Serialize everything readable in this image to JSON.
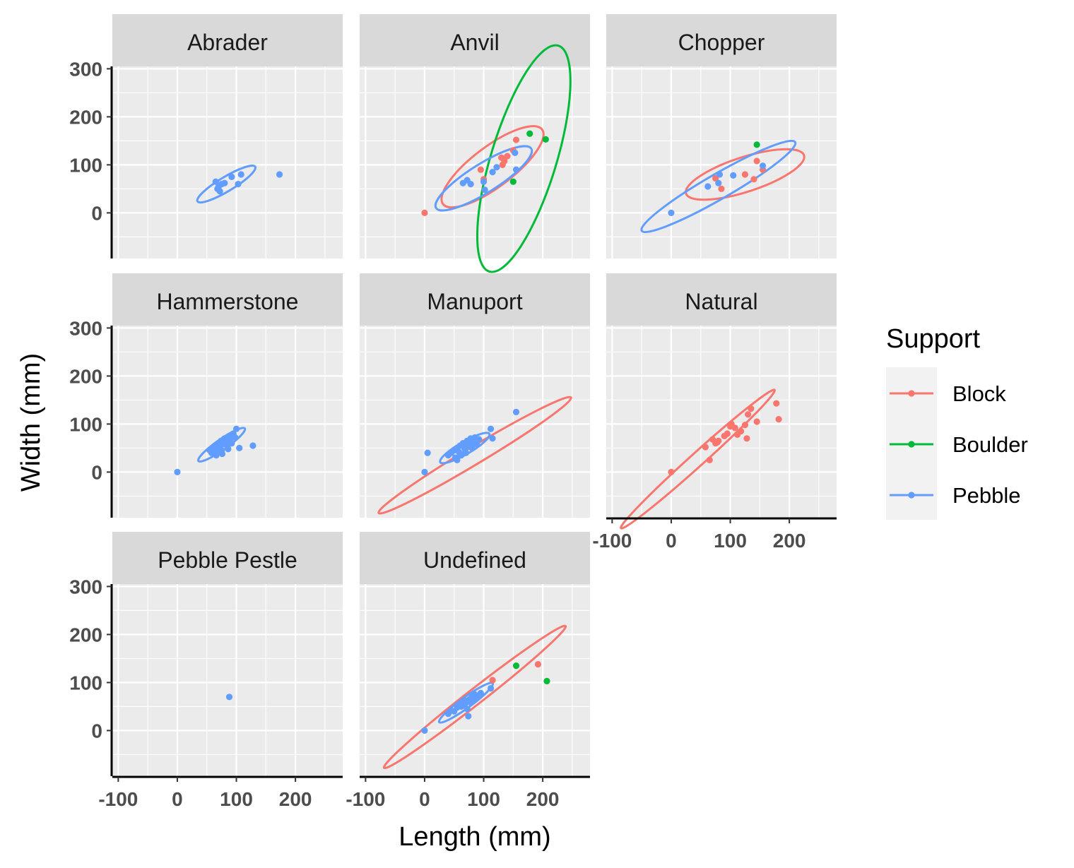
{
  "chart_data": {
    "type": "scatter",
    "xlabel": "Length (mm)",
    "ylabel": "Width (mm)",
    "xlim": [
      -110,
      280
    ],
    "ylim": [
      -95,
      305
    ],
    "x_ticks": [
      -100,
      0,
      100,
      200
    ],
    "y_ticks": [
      0,
      100,
      200,
      300
    ],
    "grid": true,
    "legend": {
      "title": "Support",
      "position": "right",
      "entries": [
        {
          "name": "Block",
          "color": "#F8766D"
        },
        {
          "name": "Boulder",
          "color": "#00BA38"
        },
        {
          "name": "Pebble",
          "color": "#619CFF"
        }
      ]
    },
    "facets": [
      {
        "label": "Abrader",
        "points": [
          {
            "support": "Pebble",
            "x": 65,
            "y": 65
          },
          {
            "support": "Pebble",
            "x": 70,
            "y": 55
          },
          {
            "support": "Pebble",
            "x": 75,
            "y": 60
          },
          {
            "support": "Pebble",
            "x": 68,
            "y": 50
          },
          {
            "support": "Pebble",
            "x": 72,
            "y": 45
          },
          {
            "support": "Pebble",
            "x": 80,
            "y": 62
          },
          {
            "support": "Pebble",
            "x": 92,
            "y": 75
          },
          {
            "support": "Pebble",
            "x": 103,
            "y": 60
          },
          {
            "support": "Pebble",
            "x": 108,
            "y": 80
          },
          {
            "support": "Pebble",
            "x": 173,
            "y": 80
          }
        ],
        "ellipses": [
          {
            "support": "Pebble",
            "cx": 83,
            "cy": 60,
            "rx": 57,
            "ry": 15,
            "angle": 31
          }
        ]
      },
      {
        "label": "Anvil",
        "points": [
          {
            "support": "Block",
            "x": 0,
            "y": 0
          },
          {
            "support": "Block",
            "x": 95,
            "y": 90
          },
          {
            "support": "Block",
            "x": 100,
            "y": 70
          },
          {
            "support": "Block",
            "x": 130,
            "y": 115
          },
          {
            "support": "Block",
            "x": 132,
            "y": 100
          },
          {
            "support": "Block",
            "x": 140,
            "y": 118
          },
          {
            "support": "Block",
            "x": 135,
            "y": 108
          },
          {
            "support": "Block",
            "x": 155,
            "y": 152
          },
          {
            "support": "Block",
            "x": 150,
            "y": 130
          },
          {
            "support": "Boulder",
            "x": 178,
            "y": 165
          },
          {
            "support": "Boulder",
            "x": 205,
            "y": 153
          },
          {
            "support": "Boulder",
            "x": 150,
            "y": 65
          },
          {
            "support": "Pebble",
            "x": 65,
            "y": 62
          },
          {
            "support": "Pebble",
            "x": 72,
            "y": 68
          },
          {
            "support": "Pebble",
            "x": 78,
            "y": 60
          },
          {
            "support": "Pebble",
            "x": 100,
            "y": 65
          },
          {
            "support": "Pebble",
            "x": 102,
            "y": 48
          },
          {
            "support": "Pebble",
            "x": 115,
            "y": 85
          },
          {
            "support": "Pebble",
            "x": 122,
            "y": 95
          },
          {
            "support": "Pebble",
            "x": 153,
            "y": 125
          },
          {
            "support": "Pebble",
            "x": 155,
            "y": 90
          }
        ],
        "ellipses": [
          {
            "support": "Block",
            "cx": 115,
            "cy": 96,
            "rx": 105,
            "ry": 42,
            "angle": 37
          },
          {
            "support": "Boulder",
            "cx": 168,
            "cy": 113,
            "rx": 200,
            "ry": 68,
            "angle": 73
          },
          {
            "support": "Pebble",
            "cx": 100,
            "cy": 72,
            "rx": 95,
            "ry": 30,
            "angle": 32
          }
        ]
      },
      {
        "label": "Chopper",
        "points": [
          {
            "support": "Block",
            "x": 75,
            "y": 72
          },
          {
            "support": "Block",
            "x": 85,
            "y": 50
          },
          {
            "support": "Block",
            "x": 125,
            "y": 80
          },
          {
            "support": "Block",
            "x": 140,
            "y": 70
          },
          {
            "support": "Block",
            "x": 145,
            "y": 108
          },
          {
            "support": "Block",
            "x": 155,
            "y": 90
          },
          {
            "support": "Boulder",
            "x": 145,
            "y": 142
          },
          {
            "support": "Pebble",
            "x": 0,
            "y": 0
          },
          {
            "support": "Pebble",
            "x": 62,
            "y": 55
          },
          {
            "support": "Pebble",
            "x": 80,
            "y": 62
          },
          {
            "support": "Pebble",
            "x": 82,
            "y": 80
          },
          {
            "support": "Pebble",
            "x": 105,
            "y": 78
          },
          {
            "support": "Pebble",
            "x": 155,
            "y": 98
          }
        ],
        "ellipses": [
          {
            "support": "Block",
            "cx": 125,
            "cy": 80,
            "rx": 105,
            "ry": 36,
            "angle": 18
          },
          {
            "support": "Pebble",
            "cx": 80,
            "cy": 55,
            "rx": 150,
            "ry": 26,
            "angle": 30
          }
        ]
      },
      {
        "label": "Hammerstone",
        "points": [
          {
            "support": "Pebble",
            "x": 0,
            "y": 0
          },
          {
            "support": "Pebble",
            "x": 55,
            "y": 45
          },
          {
            "support": "Pebble",
            "x": 60,
            "y": 50
          },
          {
            "support": "Pebble",
            "x": 62,
            "y": 42
          },
          {
            "support": "Pebble",
            "x": 65,
            "y": 55
          },
          {
            "support": "Pebble",
            "x": 68,
            "y": 48
          },
          {
            "support": "Pebble",
            "x": 70,
            "y": 60
          },
          {
            "support": "Pebble",
            "x": 72,
            "y": 52
          },
          {
            "support": "Pebble",
            "x": 74,
            "y": 65
          },
          {
            "support": "Pebble",
            "x": 75,
            "y": 45
          },
          {
            "support": "Pebble",
            "x": 76,
            "y": 38
          },
          {
            "support": "Pebble",
            "x": 78,
            "y": 58
          },
          {
            "support": "Pebble",
            "x": 80,
            "y": 70
          },
          {
            "support": "Pebble",
            "x": 82,
            "y": 62
          },
          {
            "support": "Pebble",
            "x": 85,
            "y": 55
          },
          {
            "support": "Pebble",
            "x": 88,
            "y": 75
          },
          {
            "support": "Pebble",
            "x": 90,
            "y": 68
          },
          {
            "support": "Pebble",
            "x": 92,
            "y": 60
          },
          {
            "support": "Pebble",
            "x": 95,
            "y": 80
          },
          {
            "support": "Pebble",
            "x": 98,
            "y": 72
          },
          {
            "support": "Pebble",
            "x": 100,
            "y": 90
          },
          {
            "support": "Pebble",
            "x": 58,
            "y": 40
          },
          {
            "support": "Pebble",
            "x": 66,
            "y": 35
          },
          {
            "support": "Pebble",
            "x": 70,
            "y": 42
          },
          {
            "support": "Pebble",
            "x": 86,
            "y": 48
          },
          {
            "support": "Pebble",
            "x": 105,
            "y": 50
          },
          {
            "support": "Pebble",
            "x": 128,
            "y": 55
          }
        ],
        "ellipses": [
          {
            "support": "Pebble",
            "cx": 75,
            "cy": 57,
            "rx": 48,
            "ry": 11,
            "angle": 35
          }
        ]
      },
      {
        "label": "Manuport",
        "points": [
          {
            "support": "Block",
            "x": 70,
            "y": 60
          },
          {
            "support": "Block",
            "x": 85,
            "y": 62
          },
          {
            "support": "Pebble",
            "x": 0,
            "y": 0
          },
          {
            "support": "Pebble",
            "x": 5,
            "y": 40
          },
          {
            "support": "Pebble",
            "x": 40,
            "y": 35
          },
          {
            "support": "Pebble",
            "x": 45,
            "y": 40
          },
          {
            "support": "Pebble",
            "x": 50,
            "y": 45
          },
          {
            "support": "Pebble",
            "x": 52,
            "y": 30
          },
          {
            "support": "Pebble",
            "x": 55,
            "y": 50
          },
          {
            "support": "Pebble",
            "x": 58,
            "y": 42
          },
          {
            "support": "Pebble",
            "x": 60,
            "y": 55
          },
          {
            "support": "Pebble",
            "x": 62,
            "y": 35
          },
          {
            "support": "Pebble",
            "x": 65,
            "y": 60
          },
          {
            "support": "Pebble",
            "x": 68,
            "y": 48
          },
          {
            "support": "Pebble",
            "x": 70,
            "y": 40
          },
          {
            "support": "Pebble",
            "x": 72,
            "y": 65
          },
          {
            "support": "Pebble",
            "x": 75,
            "y": 55
          },
          {
            "support": "Pebble",
            "x": 78,
            "y": 70
          },
          {
            "support": "Pebble",
            "x": 80,
            "y": 50
          },
          {
            "support": "Pebble",
            "x": 82,
            "y": 62
          },
          {
            "support": "Pebble",
            "x": 85,
            "y": 72
          },
          {
            "support": "Pebble",
            "x": 88,
            "y": 58
          },
          {
            "support": "Pebble",
            "x": 55,
            "y": 25
          },
          {
            "support": "Pebble",
            "x": 60,
            "y": 38
          },
          {
            "support": "Pebble",
            "x": 92,
            "y": 68
          },
          {
            "support": "Pebble",
            "x": 112,
            "y": 90
          },
          {
            "support": "Pebble",
            "x": 115,
            "y": 70
          },
          {
            "support": "Pebble",
            "x": 155,
            "y": 125
          }
        ],
        "ellipses": [
          {
            "support": "Block",
            "cx": 85,
            "cy": 35,
            "rx": 190,
            "ry": 18,
            "angle": 31
          },
          {
            "support": "Pebble",
            "cx": 68,
            "cy": 50,
            "rx": 48,
            "ry": 13,
            "angle": 30
          }
        ]
      },
      {
        "label": "Natural",
        "points": [
          {
            "support": "Block",
            "x": 0,
            "y": 0
          },
          {
            "support": "Block",
            "x": 58,
            "y": 52
          },
          {
            "support": "Block",
            "x": 65,
            "y": 25
          },
          {
            "support": "Block",
            "x": 70,
            "y": 68
          },
          {
            "support": "Block",
            "x": 75,
            "y": 60
          },
          {
            "support": "Block",
            "x": 78,
            "y": 62
          },
          {
            "support": "Block",
            "x": 80,
            "y": 65
          },
          {
            "support": "Block",
            "x": 90,
            "y": 75
          },
          {
            "support": "Block",
            "x": 95,
            "y": 80
          },
          {
            "support": "Block",
            "x": 100,
            "y": 95
          },
          {
            "support": "Block",
            "x": 102,
            "y": 100
          },
          {
            "support": "Block",
            "x": 108,
            "y": 92
          },
          {
            "support": "Block",
            "x": 112,
            "y": 78
          },
          {
            "support": "Block",
            "x": 118,
            "y": 85
          },
          {
            "support": "Block",
            "x": 125,
            "y": 98
          },
          {
            "support": "Block",
            "x": 128,
            "y": 70
          },
          {
            "support": "Block",
            "x": 130,
            "y": 120
          },
          {
            "support": "Block",
            "x": 135,
            "y": 132
          },
          {
            "support": "Block",
            "x": 145,
            "y": 105
          },
          {
            "support": "Block",
            "x": 178,
            "y": 143
          },
          {
            "support": "Block",
            "x": 182,
            "y": 110
          }
        ],
        "ellipses": [
          {
            "support": "Block",
            "cx": 45,
            "cy": 27,
            "rx": 175,
            "ry": 14,
            "angle": 42
          }
        ]
      },
      {
        "label": "Pebble Pestle",
        "points": [
          {
            "support": "Pebble",
            "x": 88,
            "y": 70
          }
        ],
        "ellipses": []
      },
      {
        "label": "Undefined",
        "points": [
          {
            "support": "Block",
            "x": 60,
            "y": 55
          },
          {
            "support": "Block",
            "x": 115,
            "y": 105
          },
          {
            "support": "Block",
            "x": 192,
            "y": 138
          },
          {
            "support": "Boulder",
            "x": 155,
            "y": 135
          },
          {
            "support": "Boulder",
            "x": 207,
            "y": 103
          },
          {
            "support": "Pebble",
            "x": 0,
            "y": 0
          },
          {
            "support": "Pebble",
            "x": 40,
            "y": 35
          },
          {
            "support": "Pebble",
            "x": 45,
            "y": 42
          },
          {
            "support": "Pebble",
            "x": 50,
            "y": 40
          },
          {
            "support": "Pebble",
            "x": 55,
            "y": 48
          },
          {
            "support": "Pebble",
            "x": 58,
            "y": 55
          },
          {
            "support": "Pebble",
            "x": 62,
            "y": 50
          },
          {
            "support": "Pebble",
            "x": 65,
            "y": 60
          },
          {
            "support": "Pebble",
            "x": 68,
            "y": 55
          },
          {
            "support": "Pebble",
            "x": 70,
            "y": 62
          },
          {
            "support": "Pebble",
            "x": 72,
            "y": 45
          },
          {
            "support": "Pebble",
            "x": 74,
            "y": 30
          },
          {
            "support": "Pebble",
            "x": 76,
            "y": 65
          },
          {
            "support": "Pebble",
            "x": 78,
            "y": 58
          },
          {
            "support": "Pebble",
            "x": 80,
            "y": 70
          },
          {
            "support": "Pebble",
            "x": 82,
            "y": 62
          },
          {
            "support": "Pebble",
            "x": 85,
            "y": 75
          },
          {
            "support": "Pebble",
            "x": 88,
            "y": 68
          },
          {
            "support": "Pebble",
            "x": 90,
            "y": 72
          },
          {
            "support": "Pebble",
            "x": 95,
            "y": 78
          },
          {
            "support": "Pebble",
            "x": 112,
            "y": 88
          }
        ],
        "ellipses": [
          {
            "support": "Block",
            "cx": 85,
            "cy": 70,
            "rx": 195,
            "ry": 16,
            "angle": 38
          },
          {
            "support": "Pebble",
            "cx": 70,
            "cy": 58,
            "rx": 56,
            "ry": 11,
            "angle": 36
          }
        ]
      }
    ]
  }
}
